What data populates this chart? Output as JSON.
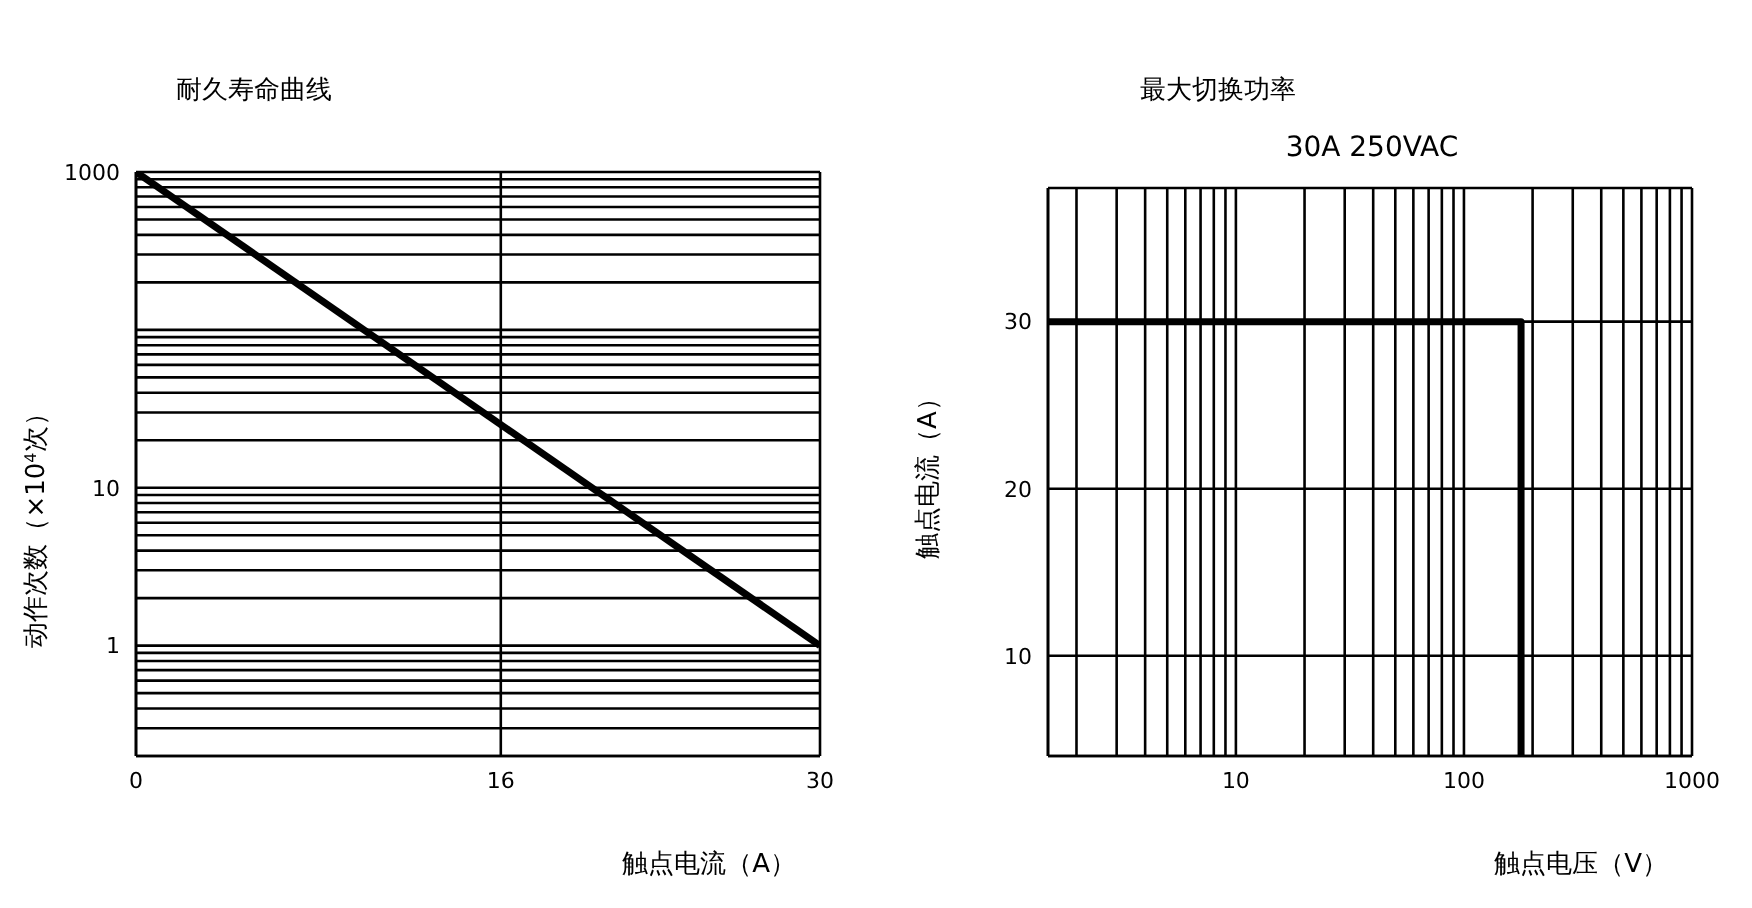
{
  "chart_data": [
    {
      "type": "line",
      "title": "耐久寿命曲线",
      "xlabel": "触点电流（A）",
      "ylabel": "动作次数（×10$^{4}$次）",
      "log": "y",
      "grid": true,
      "legend": false,
      "marker": "none",
      "line_style": "solid",
      "xlim": [
        0,
        30
      ],
      "xticks": [
        0,
        16,
        30
      ],
      "ylim": [
        0.2,
        1000
      ],
      "yticks": [
        {
          "value": 0.3,
          "label": null
        },
        {
          "value": 0.4,
          "label": null
        },
        {
          "value": 0.5,
          "label": null
        },
        {
          "value": 0.6,
          "label": null
        },
        {
          "value": 0.7,
          "label": null
        },
        {
          "value": 0.8,
          "label": null
        },
        {
          "value": 0.9,
          "label": null
        },
        1,
        {
          "value": 2,
          "label": null
        },
        {
          "value": 3,
          "label": null
        },
        {
          "value": 4,
          "label": null
        },
        {
          "value": 5,
          "label": null
        },
        {
          "value": 6,
          "label": null
        },
        {
          "value": 7,
          "label": null
        },
        {
          "value": 8,
          "label": null
        },
        {
          "value": 9,
          "label": null
        },
        10,
        {
          "value": 20,
          "label": null
        },
        {
          "value": 30,
          "label": null
        },
        {
          "value": 40,
          "label": null
        },
        {
          "value": 50,
          "label": null
        },
        {
          "value": 60,
          "label": null
        },
        {
          "value": 70,
          "label": null
        },
        {
          "value": 80,
          "label": null
        },
        {
          "value": 90,
          "label": null
        },
        {
          "value": 100,
          "label": null
        },
        {
          "value": 200,
          "label": null
        },
        {
          "value": 300,
          "label": null
        },
        {
          "value": 400,
          "label": null
        },
        {
          "value": 500,
          "label": null
        },
        {
          "value": 600,
          "label": null
        },
        {
          "value": 700,
          "label": null
        },
        {
          "value": 800,
          "label": null
        },
        {
          "value": 900,
          "label": null
        },
        1000
      ],
      "series": [
        {
          "color": "#000000",
          "x": [
            0,
            30
          ],
          "values": [
            1000,
            1
          ]
        }
      ]
    },
    {
      "type": "line",
      "title": "最大切换功率",
      "subtitle": "30A 250VAC",
      "xlabel": "触点电压（V）",
      "ylabel": "触点电流（A）",
      "log": "x",
      "grid": true,
      "legend": false,
      "marker": "none",
      "line_style": "solid",
      "xlim": [
        1.5,
        1000
      ],
      "xticks": [
        {
          "value": 2,
          "label": null
        },
        {
          "value": 3,
          "label": null
        },
        {
          "value": 4,
          "label": null
        },
        {
          "value": 5,
          "label": null
        },
        {
          "value": 6,
          "label": null
        },
        {
          "value": 7,
          "label": null
        },
        {
          "value": 8,
          "label": null
        },
        {
          "value": 9,
          "label": null
        },
        10,
        {
          "value": 20,
          "label": null
        },
        {
          "value": 30,
          "label": null
        },
        {
          "value": 40,
          "label": null
        },
        {
          "value": 50,
          "label": null
        },
        {
          "value": 60,
          "label": null
        },
        {
          "value": 70,
          "label": null
        },
        {
          "value": 80,
          "label": null
        },
        {
          "value": 90,
          "label": null
        },
        100,
        {
          "value": 200,
          "label": null
        },
        {
          "value": 300,
          "label": null
        },
        {
          "value": 400,
          "label": null
        },
        {
          "value": 500,
          "label": null
        },
        {
          "value": 600,
          "label": null
        },
        {
          "value": 700,
          "label": null
        },
        {
          "value": 800,
          "label": null
        },
        {
          "value": 900,
          "label": null
        },
        1000
      ],
      "ylim": [
        4,
        38
      ],
      "yticks": [
        10,
        20,
        30
      ],
      "series": [
        {
          "color": "#000000",
          "x": [
            1.5,
            178,
            178
          ],
          "values": [
            30,
            30,
            4
          ]
        }
      ]
    }
  ]
}
